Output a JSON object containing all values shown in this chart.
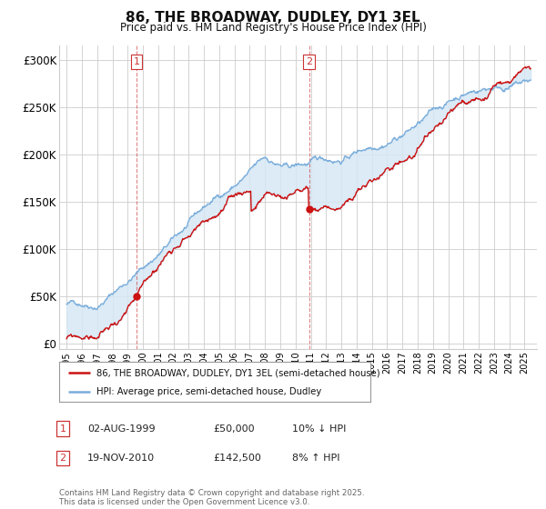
{
  "title": "86, THE BROADWAY, DUDLEY, DY1 3EL",
  "subtitle": "Price paid vs. HM Land Registry's House Price Index (HPI)",
  "ylabel_ticks": [
    "£0",
    "£50K",
    "£100K",
    "£150K",
    "£200K",
    "£250K",
    "£300K"
  ],
  "ytick_values": [
    0,
    50000,
    100000,
    150000,
    200000,
    250000,
    300000
  ],
  "ylim": [
    -5000,
    315000
  ],
  "xlim_start": 1994.5,
  "xlim_end": 2025.8,
  "sale1_date": 1999.58,
  "sale1_price": 50000,
  "sale2_date": 2010.88,
  "sale2_price": 142500,
  "hpi_line_color": "#7aaddb",
  "price_line_color": "#cc1111",
  "sale_dot_color": "#cc1111",
  "vline_color": "#cc3333",
  "fill_color": "#d6e8f5",
  "fill_alpha": 0.6,
  "grid_color": "#cccccc",
  "background_color": "#ffffff",
  "legend_label1": "86, THE BROADWAY, DUDLEY, DY1 3EL (semi-detached house)",
  "legend_label2": "HPI: Average price, semi-detached house, Dudley",
  "annotation1_num": "1",
  "annotation1_date": "02-AUG-1999",
  "annotation1_price": "£50,000",
  "annotation1_hpi": "10% ↓ HPI",
  "annotation2_num": "2",
  "annotation2_date": "19-NOV-2010",
  "annotation2_price": "£142,500",
  "annotation2_hpi": "8% ↑ HPI",
  "footnote": "Contains HM Land Registry data © Crown copyright and database right 2025.\nThis data is licensed under the Open Government Licence v3.0."
}
